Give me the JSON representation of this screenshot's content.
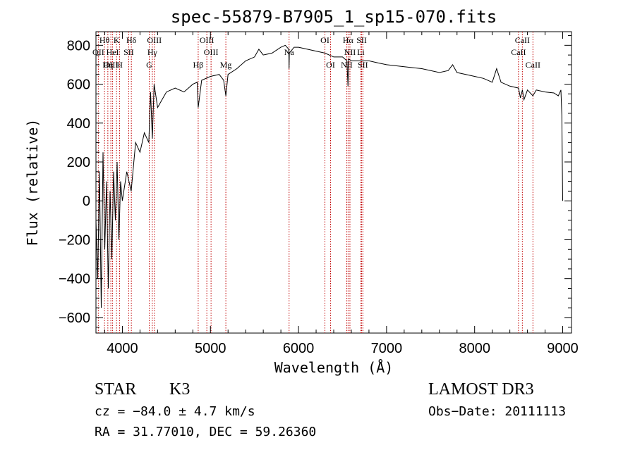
{
  "chart_data": {
    "type": "line",
    "title": "spec-55879-B7905_1_sp15-070.fits",
    "xlabel": "Wavelength (Å)",
    "ylabel": "Flux (relative)",
    "xlim": [
      3700,
      9100
    ],
    "ylim": [
      -680,
      870
    ],
    "xticks": [
      4000,
      5000,
      6000,
      7000,
      8000,
      9000
    ],
    "xtick_labels": [
      "4000",
      "5000",
      "6000",
      "7000",
      "8000",
      "9000"
    ],
    "yticks": [
      -600,
      -400,
      -200,
      0,
      200,
      400,
      600,
      800
    ],
    "ytick_labels": [
      "−600",
      "−400",
      "−200",
      "0",
      "200",
      "400",
      "600",
      "800"
    ],
    "series": [
      {
        "name": "spectrum",
        "x": [
          3700,
          3720,
          3740,
          3760,
          3780,
          3800,
          3820,
          3840,
          3860,
          3880,
          3900,
          3920,
          3940,
          3960,
          3980,
          4000,
          4050,
          4100,
          4150,
          4200,
          4250,
          4300,
          4320,
          4340,
          4360,
          4400,
          4450,
          4500,
          4600,
          4700,
          4800,
          4850,
          4861,
          4900,
          5000,
          5100,
          5150,
          5175,
          5200,
          5300,
          5400,
          5500,
          5550,
          5600,
          5700,
          5800,
          5850,
          5890,
          5893,
          5896,
          5950,
          6000,
          6100,
          6200,
          6300,
          6400,
          6500,
          6550,
          6562,
          6570,
          6600,
          6700,
          6800,
          6900,
          7000,
          7200,
          7400,
          7600,
          7700,
          7750,
          7800,
          7900,
          8000,
          8100,
          8200,
          8250,
          8300,
          8400,
          8498,
          8520,
          8542,
          8560,
          8600,
          8662,
          8700,
          8800,
          8900,
          8950,
          8980,
          8990,
          9000
        ],
        "y": [
          -100,
          -400,
          150,
          -550,
          250,
          -250,
          100,
          -450,
          50,
          -300,
          150,
          -100,
          200,
          -200,
          100,
          0,
          150,
          50,
          300,
          250,
          350,
          300,
          560,
          320,
          600,
          480,
          520,
          560,
          580,
          560,
          600,
          610,
          480,
          620,
          640,
          650,
          620,
          540,
          650,
          680,
          720,
          740,
          780,
          750,
          760,
          790,
          800,
          780,
          680,
          760,
          790,
          790,
          780,
          770,
          760,
          740,
          740,
          720,
          590,
          730,
          720,
          720,
          720,
          710,
          700,
          690,
          680,
          660,
          670,
          700,
          660,
          650,
          640,
          630,
          610,
          680,
          610,
          590,
          580,
          530,
          570,
          520,
          570,
          540,
          570,
          560,
          555,
          540,
          570,
          440,
          0
        ]
      }
    ],
    "lines": [
      {
        "label": "Hθ",
        "x": 3797,
        "row": 1
      },
      {
        "label": "K",
        "x": 3934,
        "row": 1
      },
      {
        "label": "Hδ",
        "x": 4102,
        "row": 1
      },
      {
        "label": "OIII",
        "x": 4363,
        "row": 1
      },
      {
        "label": "OIII",
        "x": 4959,
        "row": 1
      },
      {
        "label": "OI",
        "x": 6300,
        "row": 1
      },
      {
        "label": "Hα",
        "x": 6563,
        "row": 1
      },
      {
        "label": "SII",
        "x": 6717,
        "row": 1
      },
      {
        "label": "CaII",
        "x": 8542,
        "row": 1
      },
      {
        "label": "OII",
        "x": 3727,
        "row": 2
      },
      {
        "label": "HeI",
        "x": 3889,
        "row": 2
      },
      {
        "label": "SII",
        "x": 4072,
        "row": 2
      },
      {
        "label": "Hγ",
        "x": 4340,
        "row": 2
      },
      {
        "label": "OIII",
        "x": 5007,
        "row": 2
      },
      {
        "label": "Na",
        "x": 5893,
        "row": 2
      },
      {
        "label": "NII",
        "x": 6584,
        "row": 2
      },
      {
        "label": "Li",
        "x": 6708,
        "row": 2
      },
      {
        "label": "CaII",
        "x": 8498,
        "row": 2
      },
      {
        "label": "OIII",
        "x": 3869,
        "row": 3
      },
      {
        "label": "Hη",
        "x": 3835,
        "row": 3
      },
      {
        "label": "H",
        "x": 3969,
        "row": 3
      },
      {
        "label": "G",
        "x": 4305,
        "row": 3
      },
      {
        "label": "Hβ",
        "x": 4861,
        "row": 3
      },
      {
        "label": "Mg",
        "x": 5175,
        "row": 3
      },
      {
        "label": "OI",
        "x": 6364,
        "row": 3
      },
      {
        "label": "NII",
        "x": 6548,
        "row": 3
      },
      {
        "label": "SII",
        "x": 6731,
        "row": 3
      },
      {
        "label": "CaII",
        "x": 8662,
        "row": 3
      }
    ]
  },
  "info": {
    "object_class": "STAR",
    "subclass": "K3",
    "redshift_text": "cz = −84.0 ± 4.7 km/s",
    "coords_text": "RA =  31.77010, DEC =  59.26360",
    "survey": "LAMOST DR3",
    "obs_date_text": "Obs−Date: 20111113"
  },
  "colors": {
    "spectrum": "#000000",
    "line_marker": "#c00000",
    "axes": "#000000"
  }
}
